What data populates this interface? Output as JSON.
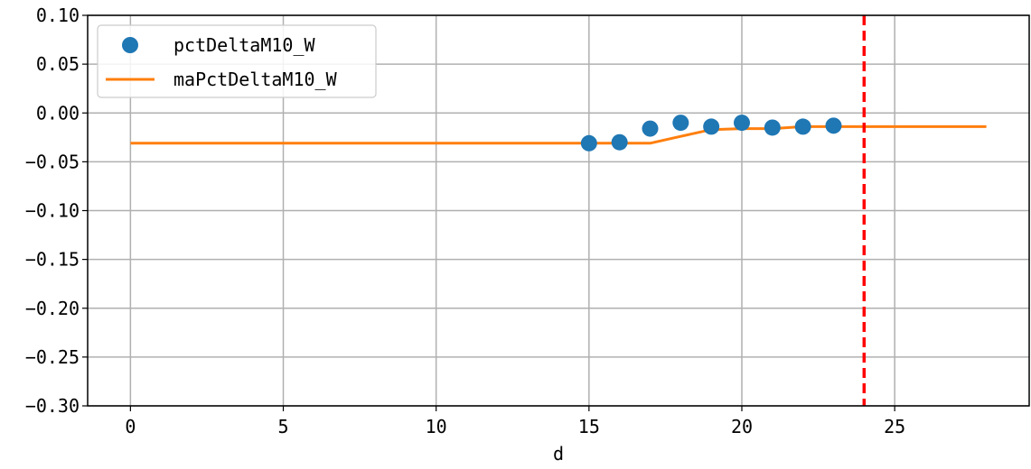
{
  "chart_data": {
    "type": "line",
    "title": "",
    "xlabel": "d",
    "ylabel": "",
    "xlim": [
      -1.4,
      29.4
    ],
    "ylim": [
      -0.3,
      0.1
    ],
    "xticks": [
      0,
      5,
      10,
      15,
      20,
      25
    ],
    "yticks": [
      0.1,
      0.05,
      0.0,
      -0.05,
      -0.1,
      -0.15,
      -0.2,
      -0.25,
      -0.3
    ],
    "ytick_labels": [
      "0.10",
      "0.05",
      "0.00",
      "−0.05",
      "−0.10",
      "−0.15",
      "−0.20",
      "−0.25",
      "−0.30"
    ],
    "grid": true,
    "legend": "upper-left",
    "series": [
      {
        "name": "pctDeltaM10_W",
        "kind": "scatter",
        "color": "#1f77b4",
        "x": [
          15,
          16,
          17,
          18,
          19,
          20,
          21,
          22,
          23
        ],
        "y": [
          -0.031,
          -0.03,
          -0.016,
          -0.01,
          -0.014,
          -0.01,
          -0.015,
          -0.014,
          -0.013
        ]
      },
      {
        "name": "maPctDeltaM10_W",
        "kind": "line",
        "color": "#ff7f0e",
        "x": [
          0,
          15,
          16,
          17,
          18,
          19,
          20,
          21,
          22,
          23,
          24,
          25,
          26,
          27,
          28
        ],
        "y": [
          -0.031,
          -0.031,
          -0.031,
          -0.031,
          -0.024,
          -0.017,
          -0.016,
          -0.016,
          -0.014,
          -0.014,
          -0.014,
          -0.014,
          -0.014,
          -0.014,
          -0.014
        ]
      }
    ],
    "vline": {
      "x": 24,
      "color": "#ff0000",
      "style": "dashed"
    }
  }
}
